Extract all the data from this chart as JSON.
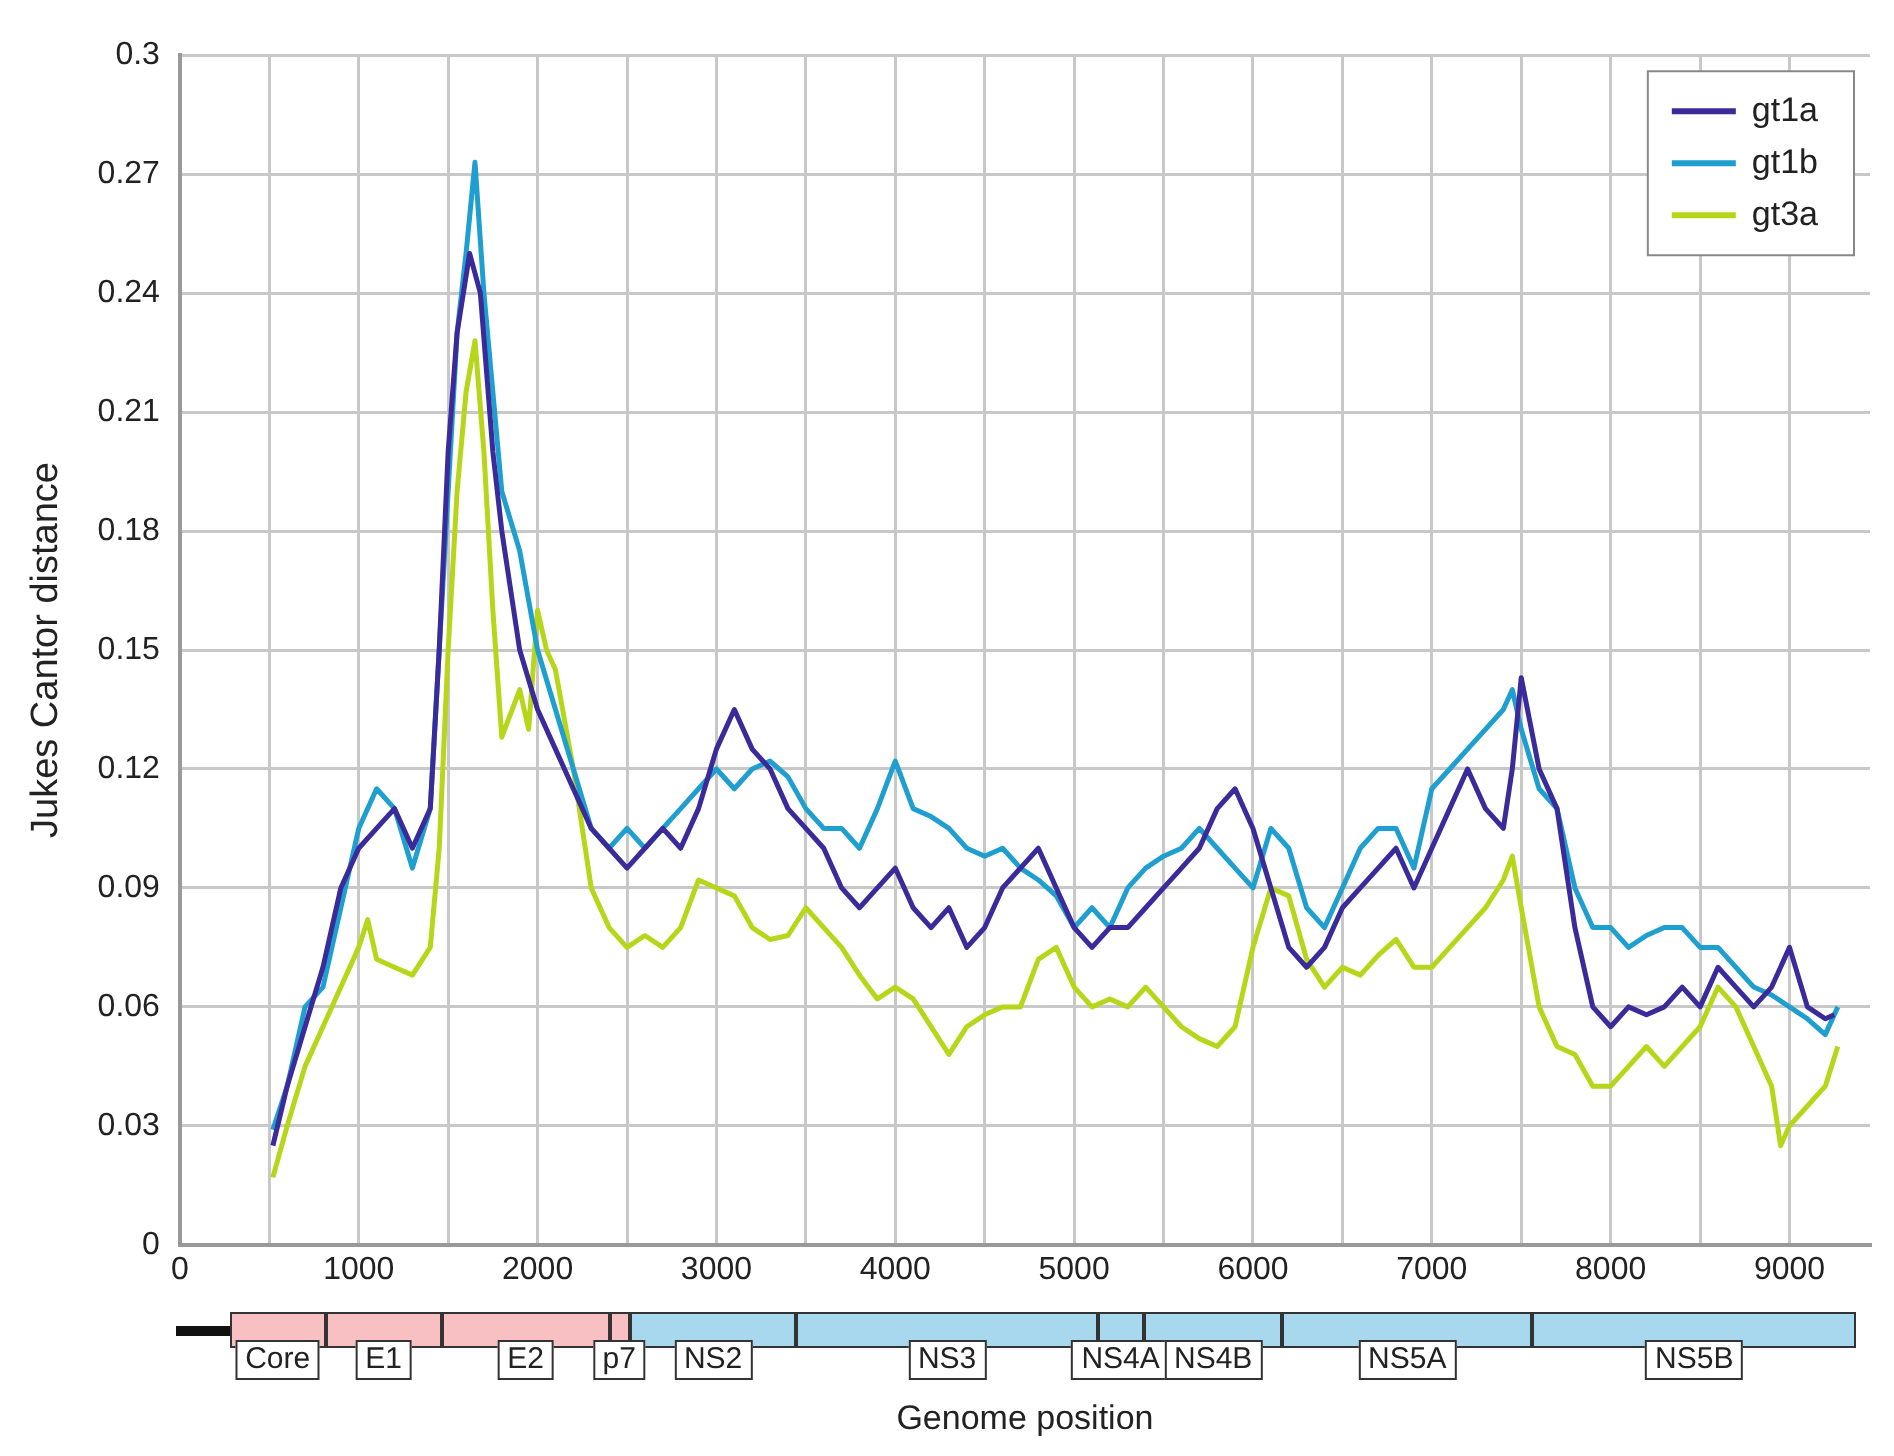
{
  "chart_data": {
    "type": "line",
    "xlabel": "Genome position",
    "ylabel": "Jukes Cantor distance",
    "xlim": [
      0,
      9450
    ],
    "ylim": [
      0,
      0.3
    ],
    "xticks": [
      0,
      {
        "value": 500,
        "label": null
      },
      1000,
      {
        "value": 1500,
        "label": null
      },
      2000,
      {
        "value": 2500,
        "label": null
      },
      3000,
      {
        "value": 3500,
        "label": null
      },
      4000,
      {
        "value": 4500,
        "label": null
      },
      5000,
      {
        "value": 5500,
        "label": null
      },
      6000,
      {
        "value": 6500,
        "label": null
      },
      7000,
      {
        "value": 7500,
        "label": null
      },
      8000,
      {
        "value": 8500,
        "label": null
      },
      9000
    ],
    "yticks": [
      0,
      0.03,
      0.06,
      0.09,
      0.12,
      0.15,
      0.18,
      0.21,
      0.24,
      0.27,
      0.3
    ],
    "grid": true,
    "legend": "top right",
    "marker": "none",
    "line_style": "solid",
    "series": [
      {
        "name": "gt1a",
        "color": "#3a2a9a",
        "x": [
          520,
          600,
          700,
          800,
          900,
          1000,
          1100,
          1200,
          1300,
          1400,
          1450,
          1500,
          1550,
          1620,
          1680,
          1750,
          1800,
          1900,
          2000,
          2100,
          2200,
          2300,
          2400,
          2500,
          2600,
          2700,
          2800,
          2900,
          3000,
          3100,
          3200,
          3300,
          3400,
          3500,
          3600,
          3700,
          3800,
          3900,
          4000,
          4100,
          4200,
          4300,
          4400,
          4500,
          4600,
          4700,
          4800,
          4900,
          5000,
          5100,
          5200,
          5300,
          5400,
          5500,
          5600,
          5700,
          5800,
          5900,
          6000,
          6100,
          6200,
          6300,
          6400,
          6500,
          6600,
          6700,
          6800,
          6900,
          7000,
          7100,
          7200,
          7300,
          7400,
          7450,
          7500,
          7600,
          7700,
          7800,
          7900,
          8000,
          8100,
          8200,
          8300,
          8400,
          8500,
          8600,
          8700,
          8800,
          8900,
          9000,
          9100,
          9200,
          9250
        ],
        "values": [
          0.025,
          0.04,
          0.055,
          0.07,
          0.09,
          0.1,
          0.105,
          0.11,
          0.1,
          0.11,
          0.15,
          0.2,
          0.23,
          0.25,
          0.24,
          0.2,
          0.18,
          0.15,
          0.135,
          0.125,
          0.115,
          0.105,
          0.1,
          0.095,
          0.1,
          0.105,
          0.1,
          0.11,
          0.125,
          0.135,
          0.125,
          0.12,
          0.11,
          0.105,
          0.1,
          0.09,
          0.085,
          0.09,
          0.095,
          0.085,
          0.08,
          0.085,
          0.075,
          0.08,
          0.09,
          0.095,
          0.1,
          0.09,
          0.08,
          0.075,
          0.08,
          0.08,
          0.085,
          0.09,
          0.095,
          0.1,
          0.11,
          0.115,
          0.105,
          0.09,
          0.075,
          0.07,
          0.075,
          0.085,
          0.09,
          0.095,
          0.1,
          0.09,
          0.1,
          0.11,
          0.12,
          0.11,
          0.105,
          0.12,
          0.143,
          0.12,
          0.11,
          0.08,
          0.06,
          0.055,
          0.06,
          0.058,
          0.06,
          0.065,
          0.06,
          0.07,
          0.065,
          0.06,
          0.065,
          0.075,
          0.06,
          0.057,
          0.058
        ]
      },
      {
        "name": "gt1b",
        "color": "#1e9fd0",
        "x": [
          520,
          600,
          700,
          800,
          900,
          1000,
          1100,
          1200,
          1300,
          1400,
          1450,
          1500,
          1550,
          1600,
          1650,
          1700,
          1800,
          1900,
          2000,
          2100,
          2200,
          2300,
          2400,
          2500,
          2600,
          2700,
          2800,
          2900,
          3000,
          3100,
          3200,
          3300,
          3400,
          3500,
          3600,
          3700,
          3800,
          3900,
          4000,
          4100,
          4200,
          4300,
          4400,
          4500,
          4600,
          4700,
          4800,
          4900,
          5000,
          5100,
          5200,
          5300,
          5400,
          5500,
          5600,
          5700,
          5800,
          5900,
          6000,
          6100,
          6200,
          6300,
          6400,
          6500,
          6600,
          6700,
          6800,
          6900,
          7000,
          7100,
          7200,
          7300,
          7400,
          7450,
          7500,
          7600,
          7700,
          7800,
          7900,
          8000,
          8100,
          8200,
          8300,
          8400,
          8500,
          8600,
          8700,
          8800,
          8900,
          9000,
          9100,
          9200,
          9270
        ],
        "values": [
          0.029,
          0.04,
          0.06,
          0.065,
          0.085,
          0.105,
          0.115,
          0.11,
          0.095,
          0.11,
          0.15,
          0.19,
          0.23,
          0.25,
          0.273,
          0.24,
          0.19,
          0.175,
          0.15,
          0.135,
          0.12,
          0.105,
          0.1,
          0.105,
          0.1,
          0.105,
          0.11,
          0.115,
          0.12,
          0.115,
          0.12,
          0.122,
          0.118,
          0.11,
          0.105,
          0.105,
          0.1,
          0.11,
          0.122,
          0.11,
          0.108,
          0.105,
          0.1,
          0.098,
          0.1,
          0.095,
          0.092,
          0.088,
          0.08,
          0.085,
          0.08,
          0.09,
          0.095,
          0.098,
          0.1,
          0.105,
          0.1,
          0.095,
          0.09,
          0.105,
          0.1,
          0.085,
          0.08,
          0.09,
          0.1,
          0.105,
          0.105,
          0.095,
          0.115,
          0.12,
          0.125,
          0.13,
          0.135,
          0.14,
          0.13,
          0.115,
          0.11,
          0.09,
          0.08,
          0.08,
          0.075,
          0.078,
          0.08,
          0.08,
          0.075,
          0.075,
          0.07,
          0.065,
          0.063,
          0.06,
          0.057,
          0.053,
          0.06
        ]
      },
      {
        "name": "gt3a",
        "color": "#b8d619",
        "x": [
          520,
          600,
          700,
          800,
          900,
          1000,
          1050,
          1100,
          1200,
          1300,
          1400,
          1450,
          1500,
          1550,
          1600,
          1650,
          1700,
          1750,
          1800,
          1900,
          1950,
          2000,
          2050,
          2100,
          2200,
          2300,
          2400,
          2500,
          2600,
          2700,
          2800,
          2900,
          3000,
          3100,
          3200,
          3300,
          3400,
          3500,
          3600,
          3700,
          3800,
          3900,
          4000,
          4100,
          4200,
          4300,
          4400,
          4500,
          4600,
          4700,
          4800,
          4900,
          5000,
          5100,
          5200,
          5300,
          5400,
          5500,
          5600,
          5700,
          5800,
          5900,
          6000,
          6100,
          6200,
          6300,
          6400,
          6500,
          6600,
          6700,
          6800,
          6900,
          7000,
          7100,
          7200,
          7300,
          7400,
          7450,
          7500,
          7600,
          7700,
          7800,
          7900,
          8000,
          8100,
          8200,
          8300,
          8400,
          8500,
          8600,
          8700,
          8800,
          8900,
          8950,
          9000,
          9100,
          9200,
          9270
        ],
        "values": [
          0.017,
          0.03,
          0.045,
          0.055,
          0.065,
          0.075,
          0.082,
          0.072,
          0.07,
          0.068,
          0.075,
          0.1,
          0.15,
          0.19,
          0.215,
          0.228,
          0.2,
          0.16,
          0.128,
          0.14,
          0.13,
          0.16,
          0.15,
          0.145,
          0.12,
          0.09,
          0.08,
          0.075,
          0.078,
          0.075,
          0.08,
          0.092,
          0.09,
          0.088,
          0.08,
          0.077,
          0.078,
          0.085,
          0.08,
          0.075,
          0.068,
          0.062,
          0.065,
          0.062,
          0.055,
          0.048,
          0.055,
          0.058,
          0.06,
          0.06,
          0.072,
          0.075,
          0.065,
          0.06,
          0.062,
          0.06,
          0.065,
          0.06,
          0.055,
          0.052,
          0.05,
          0.055,
          0.075,
          0.09,
          0.088,
          0.072,
          0.065,
          0.07,
          0.068,
          0.073,
          0.077,
          0.07,
          0.07,
          0.075,
          0.08,
          0.085,
          0.092,
          0.098,
          0.085,
          0.06,
          0.05,
          0.048,
          0.04,
          0.04,
          0.045,
          0.05,
          0.045,
          0.05,
          0.055,
          0.065,
          0.06,
          0.05,
          0.04,
          0.025,
          0.03,
          0.035,
          0.04,
          0.05
        ]
      }
    ],
    "annotations": [
      "Core",
      "E1",
      "E2",
      "p7",
      "NS2",
      "NS3",
      "NS4A",
      "NS4B",
      "NS5A",
      "NS5B"
    ]
  }
}
